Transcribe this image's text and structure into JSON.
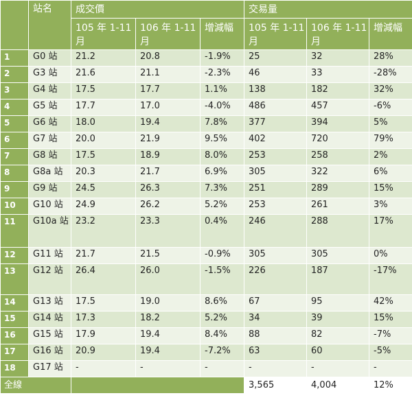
{
  "headers": {
    "station": "站名",
    "price_group": "成交價",
    "volume_group": "交易量",
    "col_105": "105 年 1-11 月",
    "col_106": "106 年 1-11 月",
    "col_change": "增減幅"
  },
  "rows": [
    {
      "n": "1",
      "station": "G0 站",
      "p105": "21.2",
      "p106": "20.8",
      "pchg": "-1.9%",
      "v105": "25",
      "v106": "32",
      "vchg": "28%"
    },
    {
      "n": "2",
      "station": "G3 站",
      "p105": "21.6",
      "p106": "21.1",
      "pchg": "-2.3%",
      "v105": "46",
      "v106": "33",
      "vchg": "-28%"
    },
    {
      "n": "3",
      "station": "G4 站",
      "p105": "17.5",
      "p106": "17.7",
      "pchg": "1.1%",
      "v105": "138",
      "v106": "182",
      "vchg": "32%"
    },
    {
      "n": "4",
      "station": "G5 站",
      "p105": "17.7",
      "p106": "17.0",
      "pchg": "-4.0%",
      "v105": "486",
      "v106": "457",
      "vchg": "-6%"
    },
    {
      "n": "5",
      "station": "G6 站",
      "p105": "18.0",
      "p106": "19.4",
      "pchg": "7.8%",
      "v105": "377",
      "v106": "394",
      "vchg": "5%"
    },
    {
      "n": "6",
      "station": "G7 站",
      "p105": "20.0",
      "p106": "21.9",
      "pchg": "9.5%",
      "v105": "402",
      "v106": "720",
      "vchg": "79%"
    },
    {
      "n": "7",
      "station": "G8 站",
      "p105": "17.5",
      "p106": "18.9",
      "pchg": "8.0%",
      "v105": "253",
      "v106": "258",
      "vchg": "2%"
    },
    {
      "n": "8",
      "station": "G8a 站",
      "p105": "20.3",
      "p106": "21.7",
      "pchg": "6.9%",
      "v105": "305",
      "v106": "322",
      "vchg": "6%"
    },
    {
      "n": "9",
      "station": "G9 站",
      "p105": "24.5",
      "p106": "26.3",
      "pchg": "7.3%",
      "v105": "251",
      "v106": "289",
      "vchg": "15%"
    },
    {
      "n": "10",
      "station": "G10 站",
      "p105": "24.9",
      "p106": "26.2",
      "pchg": "5.2%",
      "v105": "253",
      "v106": "261",
      "vchg": "3%"
    },
    {
      "n": "11",
      "station": "G10a 站",
      "p105": "23.2",
      "p106": "23.3",
      "pchg": "0.4%",
      "v105": "246",
      "v106": "288",
      "vchg": "17%"
    },
    {
      "n": "12",
      "station": "G11 站",
      "p105": "21.7",
      "p106": "21.5",
      "pchg": "-0.9%",
      "v105": "305",
      "v106": "305",
      "vchg": "0%"
    },
    {
      "n": "13",
      "station": "G12 站",
      "p105": "26.4",
      "p106": "26.0",
      "pchg": "-1.5%",
      "v105": "226",
      "v106": "187",
      "vchg": "-17%"
    },
    {
      "n": "14",
      "station": "G13 站",
      "p105": "17.5",
      "p106": "19.0",
      "pchg": "8.6%",
      "v105": "67",
      "v106": "95",
      "vchg": "42%"
    },
    {
      "n": "15",
      "station": "G14 站",
      "p105": "17.3",
      "p106": "18.2",
      "pchg": "5.2%",
      "v105": "34",
      "v106": "39",
      "vchg": "15%"
    },
    {
      "n": "16",
      "station": "G15 站",
      "p105": "17.9",
      "p106": "19.4",
      "pchg": "8.4%",
      "v105": "88",
      "v106": "82",
      "vchg": "-7%"
    },
    {
      "n": "17",
      "station": "G16 站",
      "p105": "20.9",
      "p106": "19.4",
      "pchg": "-7.2%",
      "v105": "63",
      "v106": "60",
      "vchg": "-5%"
    },
    {
      "n": "18",
      "station": "G17 站",
      "p105": "-",
      "p106": "-",
      "pchg": "-",
      "v105": "-",
      "v106": "-",
      "vchg": "-"
    }
  ],
  "total": {
    "label": "全線",
    "v105": "3,565",
    "v106": "4,004",
    "vchg": "12%"
  }
}
